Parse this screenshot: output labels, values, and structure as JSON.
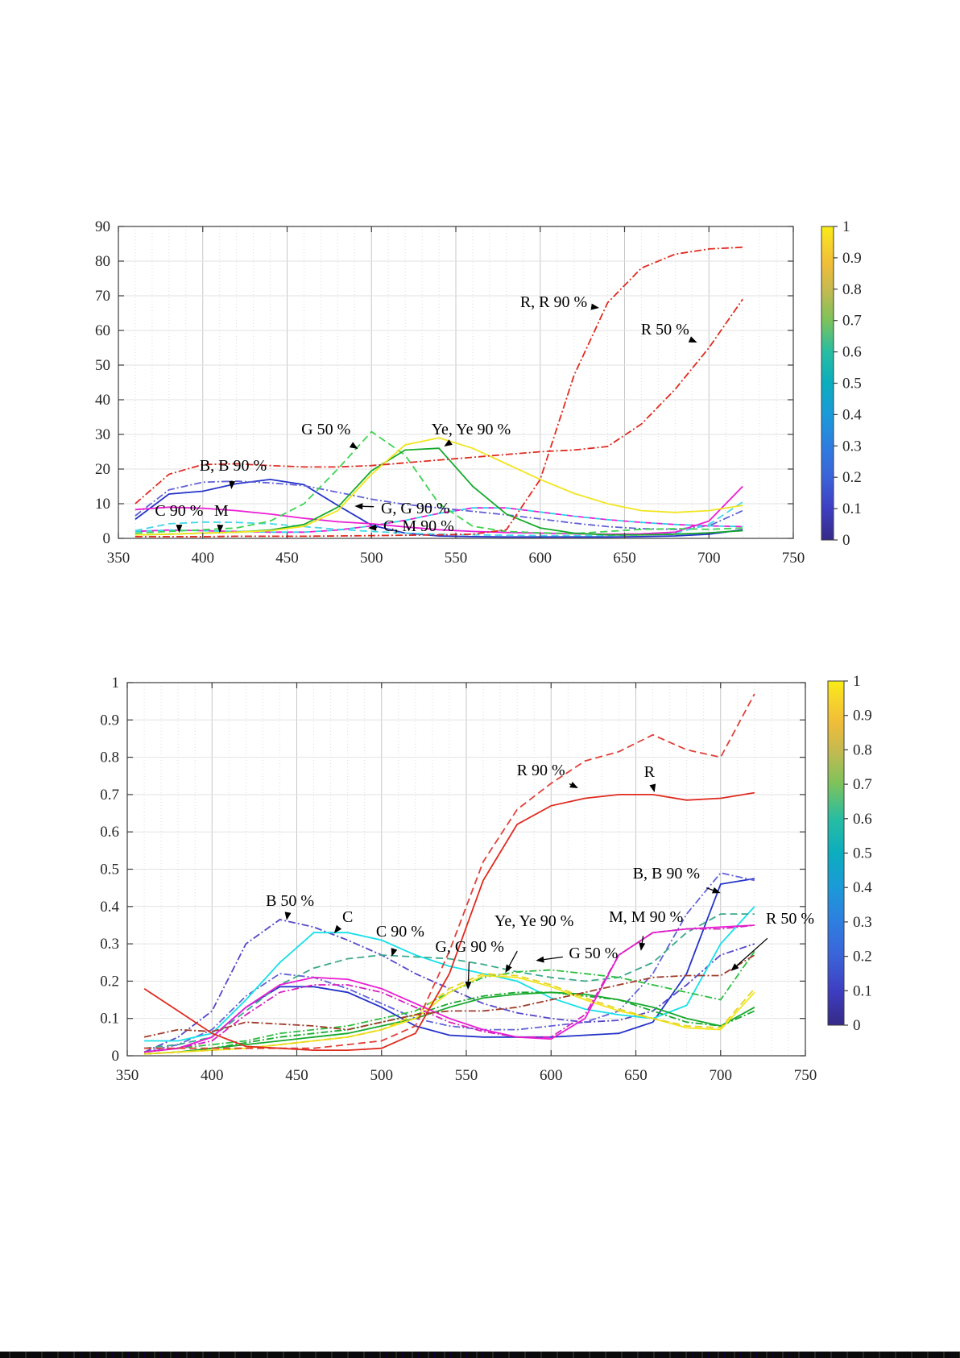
{
  "page": {
    "background": "#ffffff"
  },
  "artifact_strip": {
    "color": "#0a0a0a",
    "height": 8
  },
  "colormap": {
    "name": "parula",
    "stops": [
      [
        0.0,
        "#352a87"
      ],
      [
        0.1,
        "#3e3ec2"
      ],
      [
        0.2,
        "#3b63d8"
      ],
      [
        0.3,
        "#2e7ee0"
      ],
      [
        0.4,
        "#1b9ad8"
      ],
      [
        0.5,
        "#0cadbe"
      ],
      [
        0.6,
        "#27bda2"
      ],
      [
        0.7,
        "#7cc25c"
      ],
      [
        0.8,
        "#c6ba4f"
      ],
      [
        0.88,
        "#f0bd39"
      ],
      [
        0.95,
        "#f7d62a"
      ],
      [
        1.0,
        "#f8ec14"
      ]
    ]
  },
  "chart_data": [
    {
      "type": "line",
      "id": "top",
      "title": "",
      "xlabel": "",
      "ylabel": "",
      "xlim": [
        350,
        750
      ],
      "ylim": [
        0,
        90
      ],
      "xticks": [
        350,
        400,
        450,
        500,
        550,
        600,
        650,
        700,
        750
      ],
      "yticks": [
        0,
        10,
        20,
        30,
        40,
        50,
        60,
        70,
        80,
        90
      ],
      "grid": true,
      "legend_position": "none",
      "x": [
        360,
        380,
        400,
        420,
        440,
        460,
        480,
        500,
        520,
        540,
        560,
        580,
        600,
        620,
        640,
        660,
        680,
        700,
        720
      ],
      "series": [
        {
          "name": "B",
          "color": "#2433c8",
          "style": "solid",
          "values": [
            5.5,
            12.8,
            13.6,
            15.8,
            17,
            15.5,
            9.5,
            3.8,
            1.5,
            0.7,
            0.5,
            0.4,
            0.4,
            0.4,
            0.4,
            0.5,
            0.7,
            1.2,
            2.5
          ]
        },
        {
          "name": "B 90 %",
          "color": "#6262d8",
          "style": "dashdot",
          "values": [
            6.5,
            14,
            16.2,
            16.5,
            16,
            15.2,
            13.3,
            11.3,
            9.8,
            8.8,
            7.8,
            6.8,
            5.6,
            4.4,
            3.4,
            2.8,
            2.6,
            3.6,
            8
          ]
        },
        {
          "name": "C 90 %",
          "color": "#45d7ea",
          "style": "dash",
          "values": [
            2.2,
            4.2,
            4.7,
            4.6,
            4.2,
            3.4,
            2.6,
            2,
            1.5,
            1.2,
            1,
            0.9,
            0.8,
            0.8,
            0.8,
            1,
            1.5,
            4,
            10.5
          ]
        },
        {
          "name": "C, M 90 %",
          "color": "#27d3e2",
          "color2": "#ea1fd4",
          "style": "dashdot",
          "values": [
            2,
            2.4,
            2.2,
            2,
            1.8,
            1.8,
            2.4,
            3.6,
            5.2,
            7.2,
            8.8,
            8.8,
            7.6,
            6.4,
            5.4,
            4.6,
            4,
            3.6,
            3.4
          ]
        },
        {
          "name": "M",
          "color": "#ea1fd4",
          "style": "solid",
          "values": [
            8.3,
            9,
            8.7,
            8,
            7,
            5.8,
            4.8,
            4.2,
            3.3,
            2.5,
            2,
            1.7,
            1.5,
            1.3,
            1.2,
            1.3,
            1.8,
            5,
            15
          ]
        },
        {
          "name": "G 50 %",
          "color": "#3ed452",
          "style": "dash",
          "values": [
            1.5,
            2,
            2.5,
            3,
            5,
            10,
            20,
            30.8,
            24,
            10,
            3.5,
            2,
            1.6,
            1.4,
            2,
            2.6,
            2.8,
            2.6,
            3
          ]
        },
        {
          "name": "G, G 90 %",
          "color": "#17a92c",
          "style": "solid",
          "values": [
            1,
            1.2,
            1.5,
            1.8,
            2.4,
            4,
            9,
            19.5,
            25.5,
            26,
            15,
            7,
            3,
            1.5,
            1,
            1,
            1.2,
            1.6,
            2.2
          ]
        },
        {
          "name": "Ye, Ye 90 %",
          "color": "#f2e51f",
          "style": "solid",
          "values": [
            1,
            1.2,
            1.5,
            1.8,
            2.2,
            3.5,
            8,
            18.5,
            27,
            29,
            26,
            21.5,
            17,
            13,
            10,
            8,
            7.5,
            8,
            9.5
          ]
        },
        {
          "name": "R 50 %",
          "color": "#e02b20",
          "style": "dashdot",
          "values": [
            10,
            18.5,
            21.3,
            21.5,
            21,
            20.6,
            20.6,
            21,
            21.8,
            22.6,
            23.4,
            24.2,
            25,
            25.5,
            26.5,
            33,
            43,
            55,
            69
          ]
        },
        {
          "name": "R, R 90 %",
          "color": "#e02b20",
          "style": "dashdot",
          "values": [
            0.5,
            0.5,
            0.5,
            0.6,
            0.6,
            0.6,
            0.7,
            0.8,
            0.9,
            1,
            1.2,
            2.5,
            17,
            47,
            68,
            78,
            82,
            83.5,
            84
          ]
        }
      ],
      "annotations": [
        {
          "text": "R, R 90 %",
          "x": 608,
          "y": 68.4,
          "ax": 635,
          "ay": 66.5
        },
        {
          "text": "R 50 %",
          "x": 674,
          "y": 60.5,
          "ax": 693,
          "ay": 56.5
        },
        {
          "text": "G 50 %",
          "x": 473,
          "y": 31.6,
          "ax": 492,
          "ay": 25.8
        },
        {
          "text": "Ye, Ye 90 %",
          "x": 559,
          "y": 31.6,
          "ax": 543,
          "ay": 26.5
        },
        {
          "text": "B, B 90 %",
          "x": 418,
          "y": 21.2,
          "ax": 417,
          "ay": 14.2
        },
        {
          "text": "C 90 %",
          "x": 386,
          "y": 8.1,
          "ax": 386,
          "ay": 1.6
        },
        {
          "text": "M",
          "x": 411,
          "y": 8.1,
          "ax": 410,
          "ay": 1.6
        },
        {
          "text": "G, G 90 %",
          "x": 526,
          "y": 8.8,
          "ax": 490,
          "ay": 9.3
        },
        {
          "text": "C, M 90 %",
          "x": 528,
          "y": 3.7,
          "ax": 498,
          "ay": 3.0
        }
      ],
      "colorbar": {
        "min": 0,
        "max": 1,
        "ticks": [
          0,
          0.1,
          0.2,
          0.3,
          0.4,
          0.5,
          0.6,
          0.7,
          0.8,
          0.9,
          1
        ]
      }
    },
    {
      "type": "line",
      "id": "bottom",
      "title": "",
      "xlabel": "",
      "ylabel": "",
      "xlim": [
        350,
        750
      ],
      "ylim": [
        0,
        1
      ],
      "xticks": [
        350,
        400,
        450,
        500,
        550,
        600,
        650,
        700,
        750
      ],
      "yticks": [
        0,
        0.1,
        0.2,
        0.3,
        0.4,
        0.5,
        0.6,
        0.7,
        0.8,
        0.9,
        1
      ],
      "grid": true,
      "legend_position": "none",
      "x": [
        360,
        380,
        400,
        420,
        440,
        460,
        480,
        500,
        520,
        540,
        560,
        580,
        600,
        620,
        640,
        660,
        680,
        700,
        720
      ],
      "series": [
        {
          "name": "B 50 %",
          "color": "#5548c8",
          "style": "dashdot",
          "values": [
            0.01,
            0.05,
            0.12,
            0.3,
            0.365,
            0.345,
            0.31,
            0.27,
            0.22,
            0.18,
            0.14,
            0.115,
            0.1,
            0.09,
            0.095,
            0.12,
            0.19,
            0.27,
            0.3
          ]
        },
        {
          "name": "B",
          "color": "#2433c8",
          "style": "solid",
          "values": [
            0.01,
            0.02,
            0.05,
            0.13,
            0.185,
            0.185,
            0.17,
            0.13,
            0.08,
            0.055,
            0.05,
            0.05,
            0.05,
            0.055,
            0.06,
            0.09,
            0.22,
            0.46,
            0.475
          ]
        },
        {
          "name": "B 90 %",
          "color": "#6262d8",
          "style": "dashdot",
          "values": [
            0.01,
            0.03,
            0.07,
            0.16,
            0.22,
            0.21,
            0.18,
            0.14,
            0.1,
            0.08,
            0.07,
            0.07,
            0.08,
            0.09,
            0.12,
            0.22,
            0.38,
            0.49,
            0.47
          ]
        },
        {
          "name": "C",
          "color": "#17e0e8",
          "style": "solid",
          "values": [
            0.04,
            0.04,
            0.06,
            0.15,
            0.25,
            0.33,
            0.33,
            0.31,
            0.27,
            0.24,
            0.22,
            0.2,
            0.155,
            0.125,
            0.11,
            0.1,
            0.135,
            0.3,
            0.4
          ]
        },
        {
          "name": "C 90 %",
          "color": "#3aa98b",
          "style": "dash",
          "values": [
            0.02,
            0.03,
            0.05,
            0.12,
            0.19,
            0.235,
            0.26,
            0.27,
            0.265,
            0.26,
            0.245,
            0.225,
            0.21,
            0.2,
            0.21,
            0.25,
            0.33,
            0.38,
            0.38
          ]
        },
        {
          "name": "G",
          "color": "#17a92c",
          "style": "solid",
          "values": [
            0.005,
            0.01,
            0.02,
            0.03,
            0.04,
            0.05,
            0.06,
            0.08,
            0.1,
            0.13,
            0.155,
            0.165,
            0.17,
            0.165,
            0.15,
            0.13,
            0.1,
            0.08,
            0.13
          ]
        },
        {
          "name": "G 90 %",
          "color": "#17a92c",
          "style": "dashdot",
          "values": [
            0.005,
            0.01,
            0.02,
            0.035,
            0.05,
            0.06,
            0.07,
            0.09,
            0.11,
            0.14,
            0.16,
            0.17,
            0.17,
            0.16,
            0.15,
            0.12,
            0.09,
            0.08,
            0.12
          ]
        },
        {
          "name": "G 50 %",
          "color": "#2bbf3f",
          "style": "dashdot",
          "values": [
            0.01,
            0.02,
            0.03,
            0.04,
            0.06,
            0.07,
            0.08,
            0.1,
            0.12,
            0.17,
            0.21,
            0.225,
            0.23,
            0.22,
            0.21,
            0.19,
            0.17,
            0.15,
            0.28
          ]
        },
        {
          "name": "Ye",
          "color": "#f2e51f",
          "style": "solid",
          "values": [
            0.005,
            0.01,
            0.015,
            0.02,
            0.03,
            0.04,
            0.05,
            0.07,
            0.1,
            0.17,
            0.215,
            0.21,
            0.185,
            0.15,
            0.12,
            0.1,
            0.075,
            0.07,
            0.17
          ]
        },
        {
          "name": "Ye 90 %",
          "color": "#e8d41e",
          "style": "dash",
          "values": [
            0.005,
            0.01,
            0.015,
            0.02,
            0.03,
            0.04,
            0.05,
            0.07,
            0.11,
            0.18,
            0.22,
            0.215,
            0.19,
            0.155,
            0.125,
            0.1,
            0.08,
            0.075,
            0.18
          ]
        },
        {
          "name": "M",
          "color": "#ea1fd4",
          "style": "solid",
          "values": [
            0.01,
            0.02,
            0.05,
            0.13,
            0.19,
            0.21,
            0.205,
            0.18,
            0.14,
            0.1,
            0.07,
            0.05,
            0.045,
            0.1,
            0.27,
            0.33,
            0.34,
            0.345,
            0.35
          ]
        },
        {
          "name": "M 90 %",
          "color": "#d81fc0",
          "style": "dashdot",
          "values": [
            0.01,
            0.02,
            0.04,
            0.11,
            0.17,
            0.19,
            0.19,
            0.17,
            0.13,
            0.09,
            0.065,
            0.05,
            0.05,
            0.11,
            0.27,
            0.33,
            0.34,
            0.34,
            0.35
          ]
        },
        {
          "name": "R 50 %",
          "color": "#a03b2a",
          "style": "dashdot",
          "values": [
            0.05,
            0.07,
            0.065,
            0.09,
            0.085,
            0.08,
            0.07,
            0.09,
            0.11,
            0.12,
            0.12,
            0.13,
            0.15,
            0.17,
            0.19,
            0.21,
            0.215,
            0.215,
            0.27
          ]
        },
        {
          "name": "R 90 %",
          "color": "#e04038",
          "style": "dash",
          "values": [
            0.02,
            0.02,
            0.02,
            0.02,
            0.02,
            0.02,
            0.03,
            0.04,
            0.08,
            0.28,
            0.52,
            0.66,
            0.73,
            0.79,
            0.815,
            0.86,
            0.82,
            0.8,
            0.97
          ]
        },
        {
          "name": "R",
          "color": "#e02b20",
          "style": "solid",
          "values": [
            0.18,
            0.12,
            0.06,
            0.025,
            0.02,
            0.015,
            0.015,
            0.02,
            0.06,
            0.22,
            0.47,
            0.62,
            0.67,
            0.69,
            0.7,
            0.7,
            0.685,
            0.69,
            0.705
          ]
        }
      ],
      "annotations": [
        {
          "text": "R 90 %",
          "x": 594,
          "y": 0.767,
          "ax": 616,
          "ay": 0.717
        },
        {
          "text": "R",
          "x": 658,
          "y": 0.762,
          "ax": 661,
          "ay": 0.706
        },
        {
          "text": "B, B 90 %",
          "x": 668,
          "y": 0.49,
          "ax": 700,
          "ay": 0.436
        },
        {
          "text": "M, M 90 %",
          "x": 656,
          "y": 0.374,
          "ax": 653,
          "ay": 0.281
        },
        {
          "text": "Ye, Ye 90 %",
          "x": 590,
          "y": 0.363,
          "ax": 573,
          "ay": 0.222
        },
        {
          "text": "G 50 %",
          "x": 625,
          "y": 0.276,
          "ax": 591,
          "ay": 0.255
        },
        {
          "text": "G, G 90 %",
          "x": 552,
          "y": 0.294,
          "ax": 551,
          "ay": 0.177
        },
        {
          "text": "C 90 %",
          "x": 511,
          "y": 0.335,
          "ax": 506,
          "ay": 0.266
        },
        {
          "text": "C",
          "x": 480,
          "y": 0.374,
          "ax": 472,
          "ay": 0.328
        },
        {
          "text": "B 50 %",
          "x": 446,
          "y": 0.417,
          "ax": 444,
          "ay": 0.363
        },
        {
          "text": "R 50 %",
          "x": 741,
          "y": 0.369,
          "ax": 706,
          "ay": 0.227
        }
      ],
      "colorbar": {
        "min": 0,
        "max": 1,
        "ticks": [
          0,
          0.1,
          0.2,
          0.3,
          0.4,
          0.5,
          0.6,
          0.7,
          0.8,
          0.9,
          1
        ]
      }
    }
  ]
}
